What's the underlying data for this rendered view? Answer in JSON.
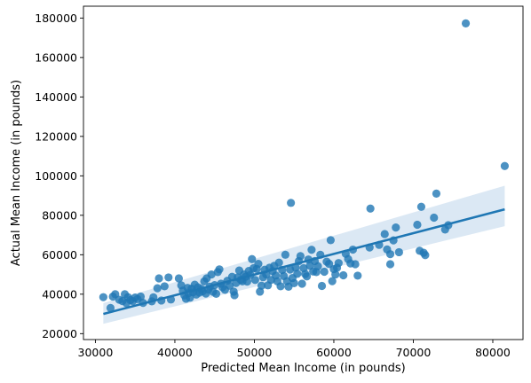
{
  "chart_data": {
    "type": "scatter",
    "title": "",
    "xlabel": "Predicted Mean Income (in pounds)",
    "ylabel": "Actual Mean Income (in pounds)",
    "xlim": [
      28500,
      83800
    ],
    "ylim": [
      17000,
      186000
    ],
    "xticks": [
      30000,
      40000,
      50000,
      60000,
      70000,
      80000
    ],
    "yticks": [
      20000,
      40000,
      60000,
      80000,
      100000,
      120000,
      140000,
      160000,
      180000
    ],
    "grid": false,
    "legend": "none",
    "colors": {
      "points": "#1f77b4",
      "line": "#1f77b4",
      "band": "#cfe0f0"
    },
    "regression": {
      "x": [
        31000,
        81500
      ],
      "y": [
        30000,
        83000
      ],
      "ci_upper": [
        35500,
        95000
      ],
      "ci_lower": [
        25000,
        74500
      ]
    },
    "points": [
      [
        31000,
        38500
      ],
      [
        31900,
        33000
      ],
      [
        32200,
        38800
      ],
      [
        32500,
        40000
      ],
      [
        33000,
        37200
      ],
      [
        33400,
        36500
      ],
      [
        33700,
        40000
      ],
      [
        33900,
        35500
      ],
      [
        34100,
        38500
      ],
      [
        34400,
        37000
      ],
      [
        34700,
        36500
      ],
      [
        35000,
        38300
      ],
      [
        35300,
        37500
      ],
      [
        35700,
        38800
      ],
      [
        36000,
        35600
      ],
      [
        37100,
        36400
      ],
      [
        37300,
        38400
      ],
      [
        37800,
        43000
      ],
      [
        38000,
        48000
      ],
      [
        38300,
        36800
      ],
      [
        38700,
        44000
      ],
      [
        39200,
        48500
      ],
      [
        39500,
        37300
      ],
      [
        40500,
        48000
      ],
      [
        40800,
        44500
      ],
      [
        41000,
        41800
      ],
      [
        41200,
        39400
      ],
      [
        41400,
        37700
      ],
      [
        41600,
        43200
      ],
      [
        41700,
        40500
      ],
      [
        41900,
        38200
      ],
      [
        42100,
        42800
      ],
      [
        42300,
        41000
      ],
      [
        42500,
        44800
      ],
      [
        42700,
        39800
      ],
      [
        42900,
        43500
      ],
      [
        43100,
        40800
      ],
      [
        43300,
        42700
      ],
      [
        43500,
        41500
      ],
      [
        43700,
        46500
      ],
      [
        43900,
        40300
      ],
      [
        44000,
        48000
      ],
      [
        44200,
        42400
      ],
      [
        44400,
        43800
      ],
      [
        44600,
        50000
      ],
      [
        44800,
        41200
      ],
      [
        45000,
        44600
      ],
      [
        45200,
        40200
      ],
      [
        45400,
        51200
      ],
      [
        45600,
        52600
      ],
      [
        45800,
        45300
      ],
      [
        46000,
        43500
      ],
      [
        46300,
        42200
      ],
      [
        46600,
        46800
      ],
      [
        46900,
        44300
      ],
      [
        47200,
        48800
      ],
      [
        47400,
        41300
      ],
      [
        47500,
        39500
      ],
      [
        47700,
        45700
      ],
      [
        47900,
        48500
      ],
      [
        48100,
        52000
      ],
      [
        48300,
        47200
      ],
      [
        48500,
        46500
      ],
      [
        48700,
        50000
      ],
      [
        48900,
        48800
      ],
      [
        49100,
        46400
      ],
      [
        49300,
        51800
      ],
      [
        49500,
        49800
      ],
      [
        49700,
        57800
      ],
      [
        49900,
        53200
      ],
      [
        50100,
        47200
      ],
      [
        50300,
        52800
      ],
      [
        50500,
        55400
      ],
      [
        50700,
        41300
      ],
      [
        50900,
        44300
      ],
      [
        51100,
        48600
      ],
      [
        51300,
        52400
      ],
      [
        51500,
        50000
      ],
      [
        51700,
        44500
      ],
      [
        51900,
        53400
      ],
      [
        52100,
        47200
      ],
      [
        52300,
        51700
      ],
      [
        52500,
        54400
      ],
      [
        52700,
        49500
      ],
      [
        52900,
        46500
      ],
      [
        53100,
        56000
      ],
      [
        53300,
        44000
      ],
      [
        53500,
        52300
      ],
      [
        53700,
        49200
      ],
      [
        53900,
        60000
      ],
      [
        54100,
        46600
      ],
      [
        54300,
        43800
      ],
      [
        54500,
        52500
      ],
      [
        54600,
        86300
      ],
      [
        54800,
        48200
      ],
      [
        55000,
        45600
      ],
      [
        55200,
        53500
      ],
      [
        55400,
        50300
      ],
      [
        55600,
        56800
      ],
      [
        55800,
        59300
      ],
      [
        56000,
        45300
      ],
      [
        56200,
        53200
      ],
      [
        56400,
        50200
      ],
      [
        56600,
        49000
      ],
      [
        56800,
        57600
      ],
      [
        57000,
        54500
      ],
      [
        57200,
        62500
      ],
      [
        57400,
        51500
      ],
      [
        57600,
        56800
      ],
      [
        57800,
        51200
      ],
      [
        58000,
        54200
      ],
      [
        58300,
        60000
      ],
      [
        58500,
        44200
      ],
      [
        58800,
        51400
      ],
      [
        59100,
        56500
      ],
      [
        59400,
        55400
      ],
      [
        59600,
        67400
      ],
      [
        59800,
        46600
      ],
      [
        60000,
        52700
      ],
      [
        60200,
        50000
      ],
      [
        60400,
        53400
      ],
      [
        60600,
        55800
      ],
      [
        61200,
        49600
      ],
      [
        61500,
        60500
      ],
      [
        61800,
        57800
      ],
      [
        62100,
        55600
      ],
      [
        62400,
        62600
      ],
      [
        62700,
        55200
      ],
      [
        63000,
        49400
      ],
      [
        64500,
        63700
      ],
      [
        64600,
        83400
      ],
      [
        65700,
        65000
      ],
      [
        66400,
        70500
      ],
      [
        66700,
        62700
      ],
      [
        67100,
        60300
      ],
      [
        67100,
        55200
      ],
      [
        67500,
        67300
      ],
      [
        67800,
        73800
      ],
      [
        68200,
        61300
      ],
      [
        70500,
        75200
      ],
      [
        70800,
        62000
      ],
      [
        71000,
        84300
      ],
      [
        71300,
        61000
      ],
      [
        71500,
        59800
      ],
      [
        72600,
        78800
      ],
      [
        72900,
        91000
      ],
      [
        74000,
        72800
      ],
      [
        74400,
        75000
      ],
      [
        76600,
        177300
      ],
      [
        81500,
        105000
      ]
    ]
  }
}
